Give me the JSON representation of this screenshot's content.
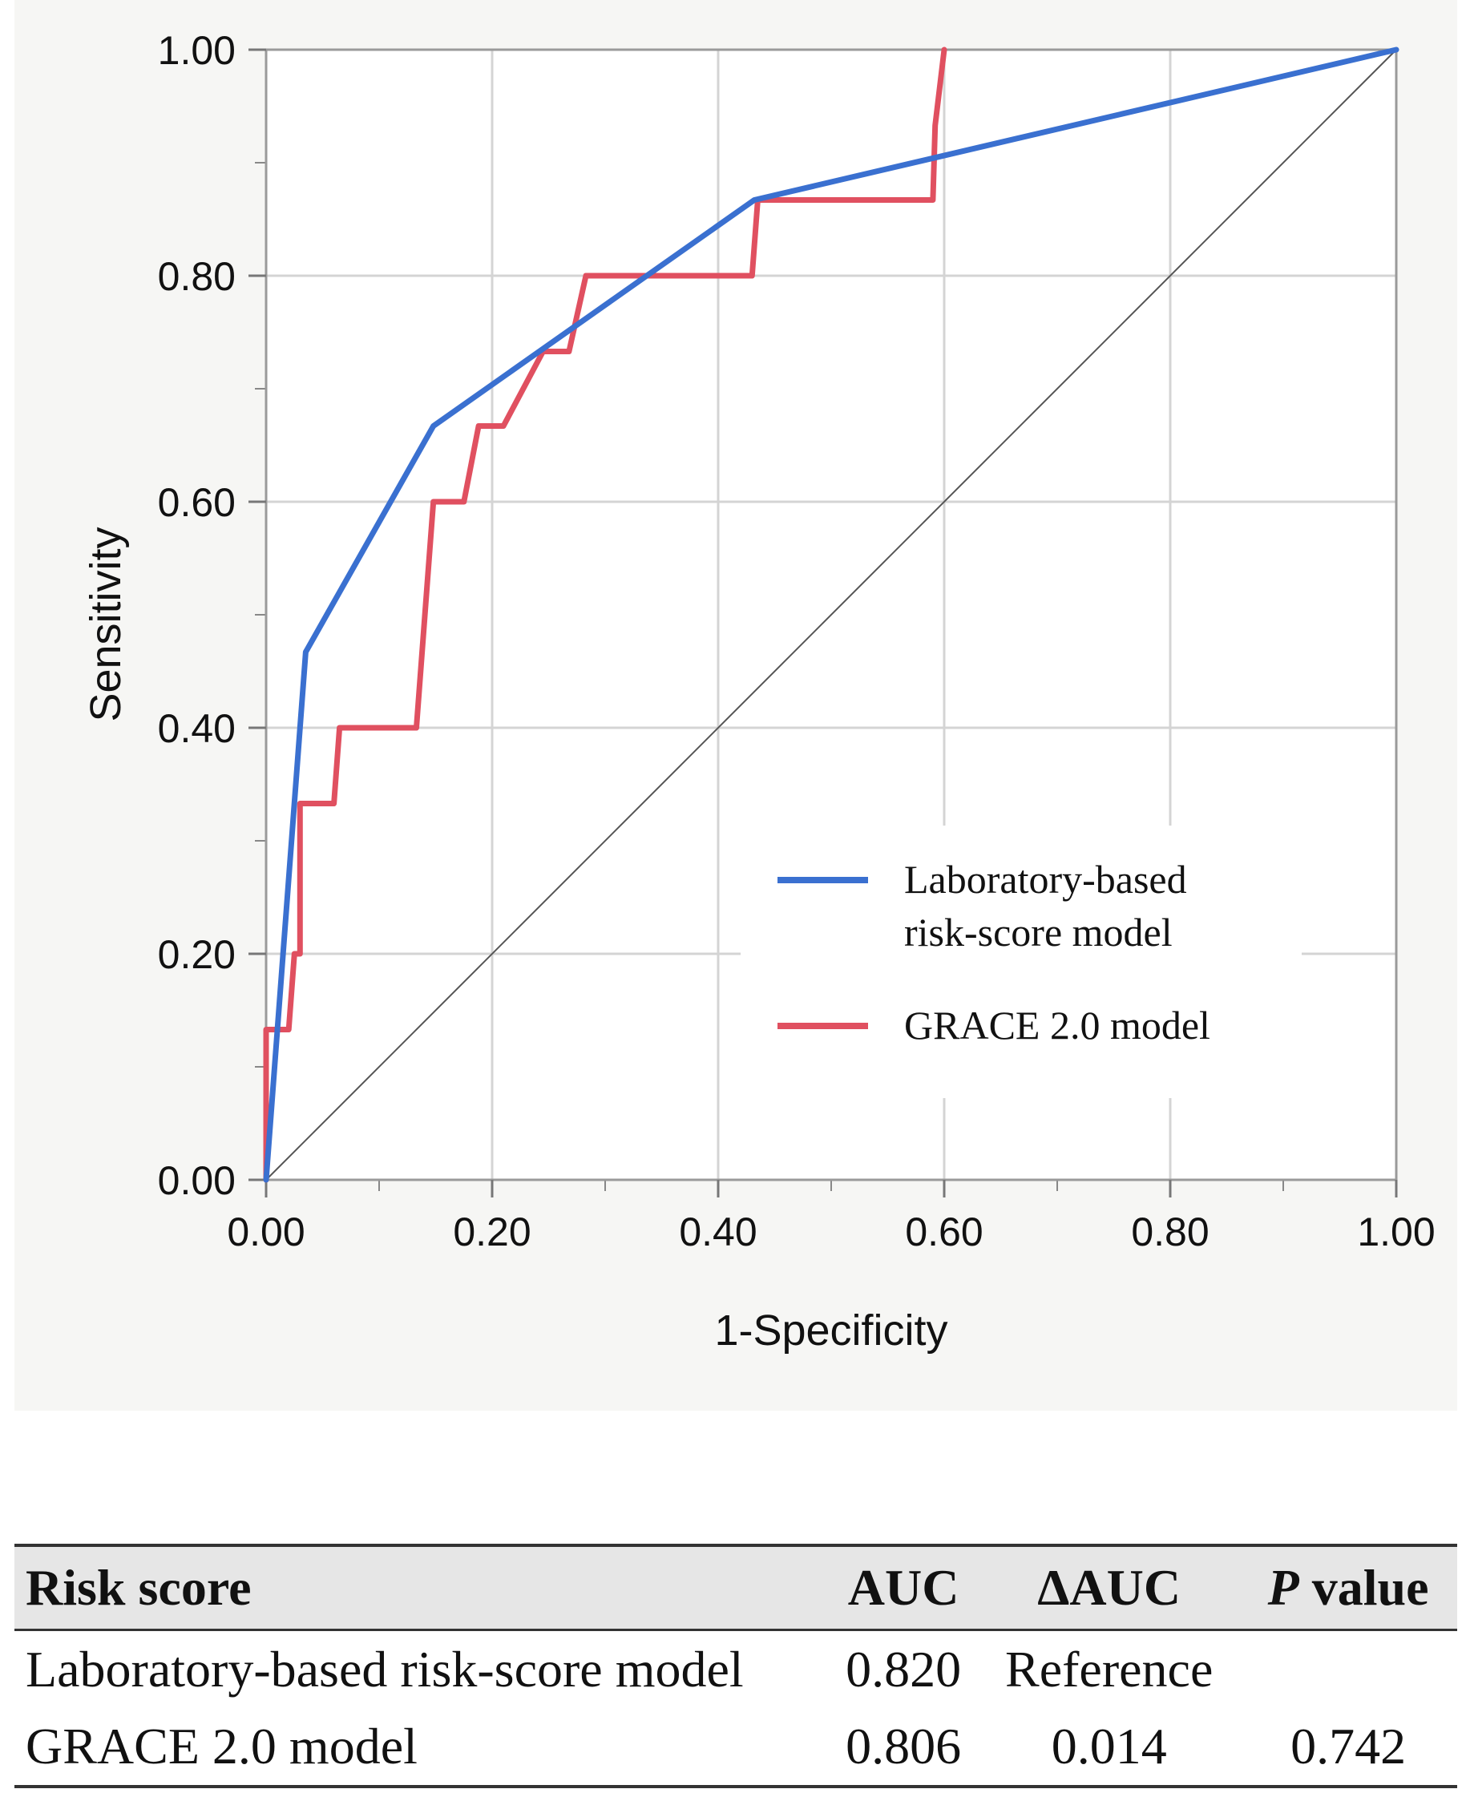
{
  "chart_data": {
    "type": "line",
    "xlabel": "1-Specificity",
    "ylabel": "Sensitivity",
    "xlim": [
      0,
      1
    ],
    "ylim": [
      0,
      1
    ],
    "x_ticks": [
      "0.00",
      "0.20",
      "0.40",
      "0.60",
      "0.80",
      "1.00"
    ],
    "y_ticks": [
      "0.00",
      "0.20",
      "0.40",
      "0.60",
      "0.80",
      "1.00"
    ],
    "grid": true,
    "legend_position": "bottom-right",
    "reference_line": {
      "points": [
        [
          0,
          0
        ],
        [
          1,
          1
        ]
      ],
      "color": "#555555"
    },
    "series": [
      {
        "name": "Laboratory-based risk-score model",
        "legend_lines": [
          "Laboratory-based",
          "risk-score model"
        ],
        "color": "#3a70d0",
        "points": [
          [
            0,
            0
          ],
          [
            0.035,
            0.467
          ],
          [
            0.148,
            0.667
          ],
          [
            0.432,
            0.867
          ],
          [
            1.0,
            1.0
          ]
        ]
      },
      {
        "name": "GRACE 2.0 model",
        "legend_lines": [
          "GRACE 2.0 model"
        ],
        "color": "#e05060",
        "points": [
          [
            0,
            0
          ],
          [
            0,
            0.133
          ],
          [
            0.015,
            0.133
          ],
          [
            0.02,
            0.133
          ],
          [
            0.025,
            0.2
          ],
          [
            0.03,
            0.2
          ],
          [
            0.03,
            0.333
          ],
          [
            0.06,
            0.333
          ],
          [
            0.065,
            0.4
          ],
          [
            0.133,
            0.4
          ],
          [
            0.148,
            0.6
          ],
          [
            0.175,
            0.6
          ],
          [
            0.188,
            0.667
          ],
          [
            0.21,
            0.667
          ],
          [
            0.245,
            0.733
          ],
          [
            0.268,
            0.733
          ],
          [
            0.283,
            0.8
          ],
          [
            0.43,
            0.8
          ],
          [
            0.435,
            0.867
          ],
          [
            0.59,
            0.867
          ],
          [
            0.592,
            0.933
          ],
          [
            0.6,
            1.0
          ]
        ]
      }
    ]
  },
  "table": {
    "headers": {
      "name": "Risk score",
      "auc": "AUC",
      "dauc": "ΔAUC",
      "p_italic": "P",
      "p_rest": " value"
    },
    "rows": [
      {
        "name": "Laboratory-based risk-score model",
        "auc": "0.820",
        "dauc": "Reference",
        "p": ""
      },
      {
        "name": "GRACE 2.0 model",
        "auc": "0.806",
        "dauc": "0.014",
        "p": "0.742"
      }
    ]
  }
}
